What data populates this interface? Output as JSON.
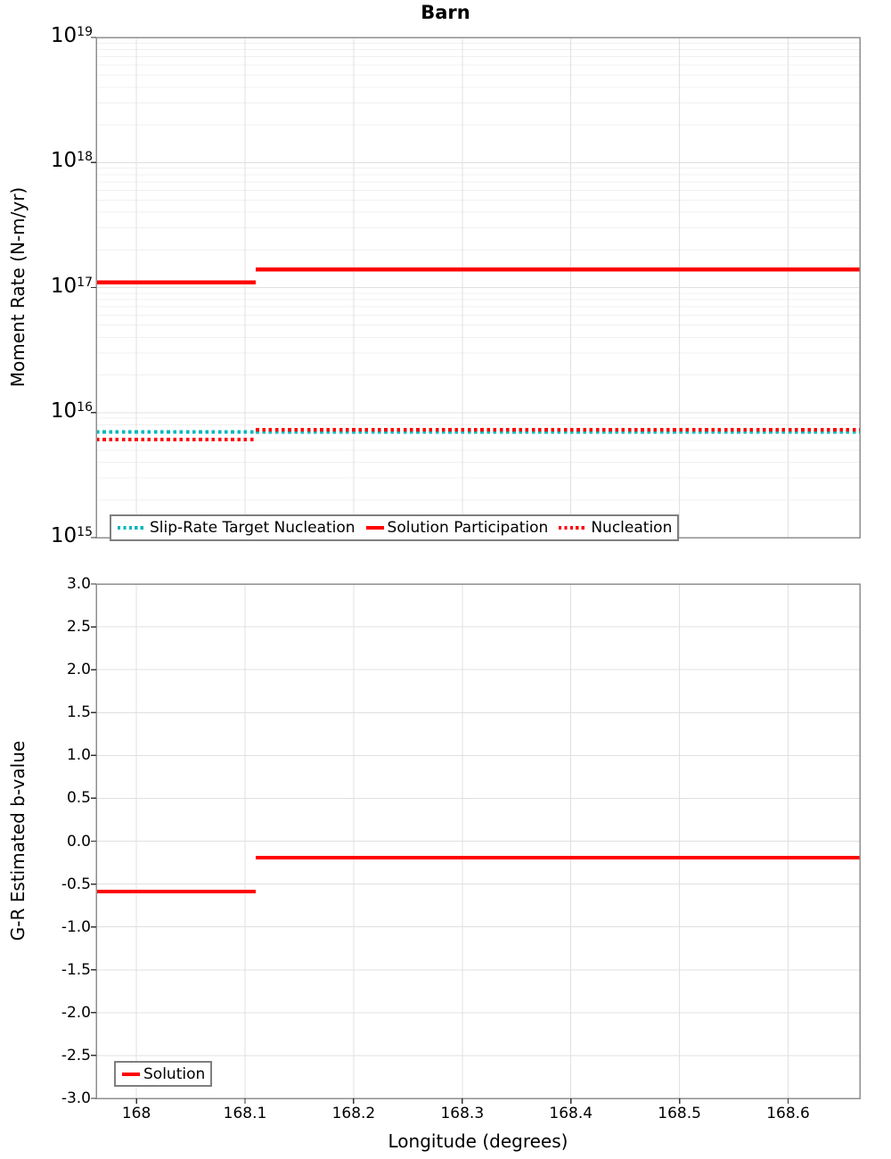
{
  "title": "Barn",
  "colors": {
    "series_red": "#ff0000",
    "series_cyan": "#00b6bc",
    "grid_major": "#e0e0e0",
    "grid_minor": "#f0f0f0",
    "plot_border": "#8f8f8f",
    "legend_border": "#7f7f7f",
    "tick": "#333333",
    "text": "#000000",
    "background": "#ffffff"
  },
  "chart_data": [
    {
      "type": "line",
      "title": "Barn",
      "ylabel": "Moment Rate (N-m/yr)",
      "yscale": "log",
      "ylim": [
        1000000000000000.0,
        1e+19
      ],
      "ytick_exponents": [
        15,
        16,
        17,
        18,
        19
      ],
      "xlim": [
        167.963,
        168.666
      ],
      "xtick_values": [
        168,
        168.1,
        168.2,
        168.3,
        168.4,
        168.5,
        168.6
      ],
      "xtick_labels": [
        "168",
        "168.1",
        "168.2",
        "168.3",
        "168.4",
        "168.5",
        "168.6"
      ],
      "grid": "major+log-minor",
      "legend_position": "bottom-left-horizontal",
      "series": [
        {
          "name": "Slip-Rate Target Nucleation",
          "color": "#00b6bc",
          "line_style": "dotted",
          "segments": [
            {
              "x": [
                167.963,
                168.11
              ],
              "y": 7000000000000000.0
            },
            {
              "x": [
                168.11,
                168.666
              ],
              "y": 7000000000000000.0
            }
          ]
        },
        {
          "name": "Solution Participation",
          "color": "#ff0000",
          "line_style": "solid",
          "segments": [
            {
              "x": [
                167.963,
                168.11
              ],
              "y": 1.1e+17
            },
            {
              "x": [
                168.11,
                168.666
              ],
              "y": 1.4e+17
            }
          ]
        },
        {
          "name": "Nucleation",
          "color": "#ff0000",
          "line_style": "dotted",
          "segments": [
            {
              "x": [
                167.963,
                168.11
              ],
              "y": 6100000000000000.0
            },
            {
              "x": [
                168.11,
                168.666
              ],
              "y": 7300000000000000.0
            }
          ]
        }
      ]
    },
    {
      "type": "line",
      "ylabel": "G-R Estimated b-value",
      "xlabel": "Longitude (degrees)",
      "yscale": "linear",
      "ylim": [
        -3.0,
        3.0
      ],
      "ytick_values": [
        3.0,
        2.5,
        2.0,
        1.5,
        1.0,
        0.5,
        0.0,
        -0.5,
        -1.0,
        -1.5,
        -2.0,
        -2.5,
        -3.0
      ],
      "ytick_labels": [
        "3.0",
        "2.5",
        "2.0",
        "1.5",
        "1.0",
        "0.5",
        "0.0",
        "-0.5",
        "-1.0",
        "-1.5",
        "-2.0",
        "-2.5",
        "-3.0"
      ],
      "xlim": [
        167.963,
        168.666
      ],
      "xtick_values": [
        168,
        168.1,
        168.2,
        168.3,
        168.4,
        168.5,
        168.6
      ],
      "xtick_labels": [
        "168",
        "168.1",
        "168.2",
        "168.3",
        "168.4",
        "168.5",
        "168.6"
      ],
      "grid": "major",
      "legend_position": "bottom-left",
      "series": [
        {
          "name": "Solution",
          "color": "#ff0000",
          "line_style": "solid",
          "segments": [
            {
              "x": [
                167.963,
                168.11
              ],
              "y": -0.59
            },
            {
              "x": [
                168.11,
                168.666
              ],
              "y": -0.19
            }
          ]
        }
      ]
    }
  ]
}
